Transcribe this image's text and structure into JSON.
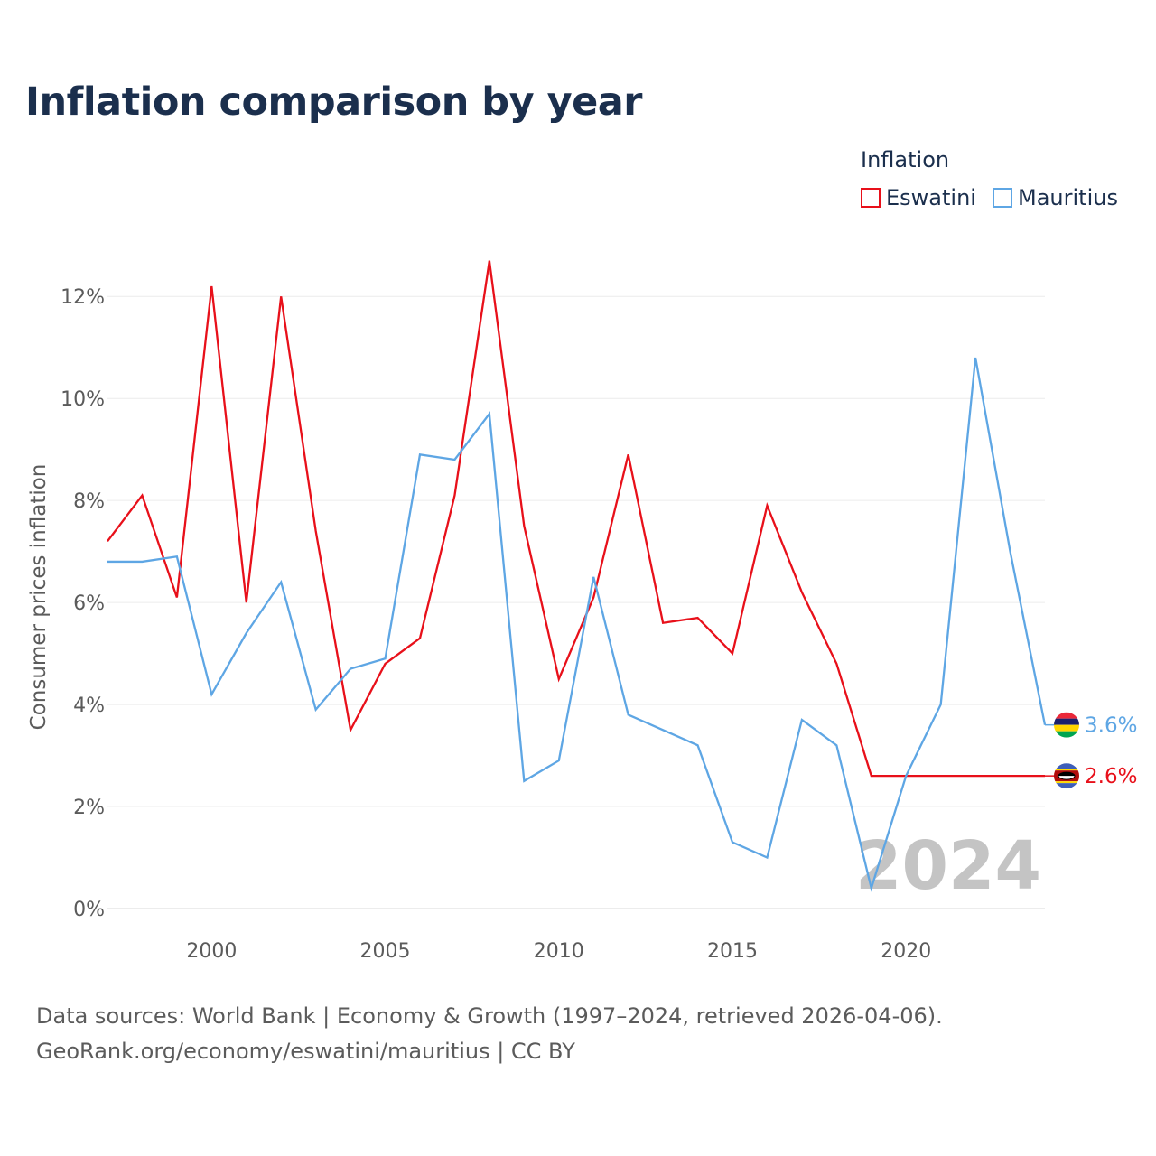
{
  "title": "Inflation comparison by year",
  "legend": {
    "title": "Inflation",
    "items": [
      {
        "name": "Eswatini",
        "color": "#e8101a"
      },
      {
        "name": "Mauritius",
        "color": "#5ea6e4"
      }
    ]
  },
  "chart_data": {
    "type": "line",
    "title": "Inflation comparison by year",
    "xlabel": "",
    "ylabel": "Consumer prices inflation",
    "xlim": [
      1997,
      2024
    ],
    "ylim": [
      0,
      12.5
    ],
    "x_ticks": [
      2000,
      2005,
      2010,
      2015,
      2020
    ],
    "y_ticks": [
      0,
      2,
      4,
      6,
      8,
      10,
      12
    ],
    "y_tick_labels": [
      "0%",
      "2%",
      "4%",
      "6%",
      "8%",
      "10%",
      "12%"
    ],
    "grid": true,
    "year_watermark": "2024",
    "x": [
      1997,
      1998,
      1999,
      2000,
      2001,
      2002,
      2003,
      2004,
      2005,
      2006,
      2007,
      2008,
      2009,
      2010,
      2011,
      2012,
      2013,
      2014,
      2015,
      2016,
      2017,
      2018,
      2019,
      2020,
      2021,
      2022,
      2023,
      2024
    ],
    "series": [
      {
        "name": "Eswatini",
        "color": "#e8101a",
        "values": [
          7.2,
          8.1,
          6.1,
          12.2,
          6.0,
          12.0,
          7.4,
          3.5,
          4.8,
          5.3,
          8.1,
          12.7,
          7.5,
          4.5,
          6.1,
          8.9,
          5.6,
          5.7,
          5.0,
          7.9,
          6.2,
          4.8,
          2.6,
          null,
          null,
          null,
          null,
          2.6
        ],
        "end_label": "2.6%"
      },
      {
        "name": "Mauritius",
        "color": "#5ea6e4",
        "values": [
          6.8,
          6.8,
          6.9,
          4.2,
          5.4,
          6.4,
          3.9,
          4.7,
          4.9,
          8.9,
          8.8,
          9.7,
          2.5,
          2.9,
          6.5,
          3.8,
          3.5,
          3.2,
          1.3,
          1.0,
          3.7,
          3.2,
          0.4,
          2.6,
          4.0,
          10.8,
          7.0,
          3.6
        ],
        "end_label": "3.6%"
      }
    ]
  },
  "sources": {
    "line1": "Data sources: World Bank | Economy & Growth (1997–2024, retrieved 2026-04-06).",
    "line2": "GeoRank.org/economy/eswatini/mauritius | CC BY"
  }
}
